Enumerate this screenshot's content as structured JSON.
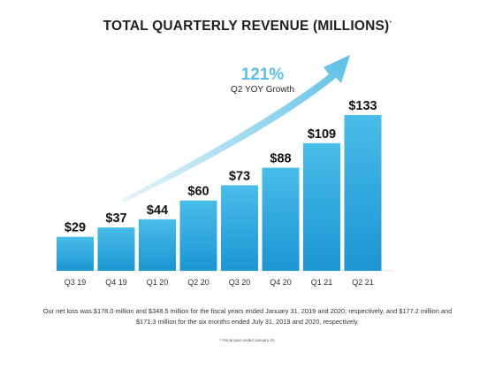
{
  "title": "TOTAL QUARTERLY REVENUE (MILLIONS)",
  "title_footnote_mark": "*",
  "growth": {
    "value": "121%",
    "label": "Q2 YOY Growth"
  },
  "chart_data": {
    "type": "bar",
    "categories": [
      "Q3 19",
      "Q4 19",
      "Q1 20",
      "Q2 20",
      "Q3 20",
      "Q4 20",
      "Q1 21",
      "Q2 21"
    ],
    "values": [
      29,
      37,
      44,
      60,
      73,
      88,
      109,
      133
    ],
    "data_labels": [
      "$29",
      "$37",
      "$44",
      "$60",
      "$73",
      "$88",
      "$109",
      "$133"
    ],
    "ylim": [
      0,
      133
    ],
    "grid": false,
    "bar_color_top": "#48bde8",
    "bar_color_bottom": "#1c95d3",
    "arrow_color": "#5bbfe6"
  },
  "note": "Our net loss was $178.0 million and $348.5 million for the fiscal years ended January 31, 2019 and 2020, respectively, and $177.2 million and $171.3 million for the six months ended July 31, 2019 and 2020, respectively.",
  "fine_print": "* Fiscal year ended January 31."
}
